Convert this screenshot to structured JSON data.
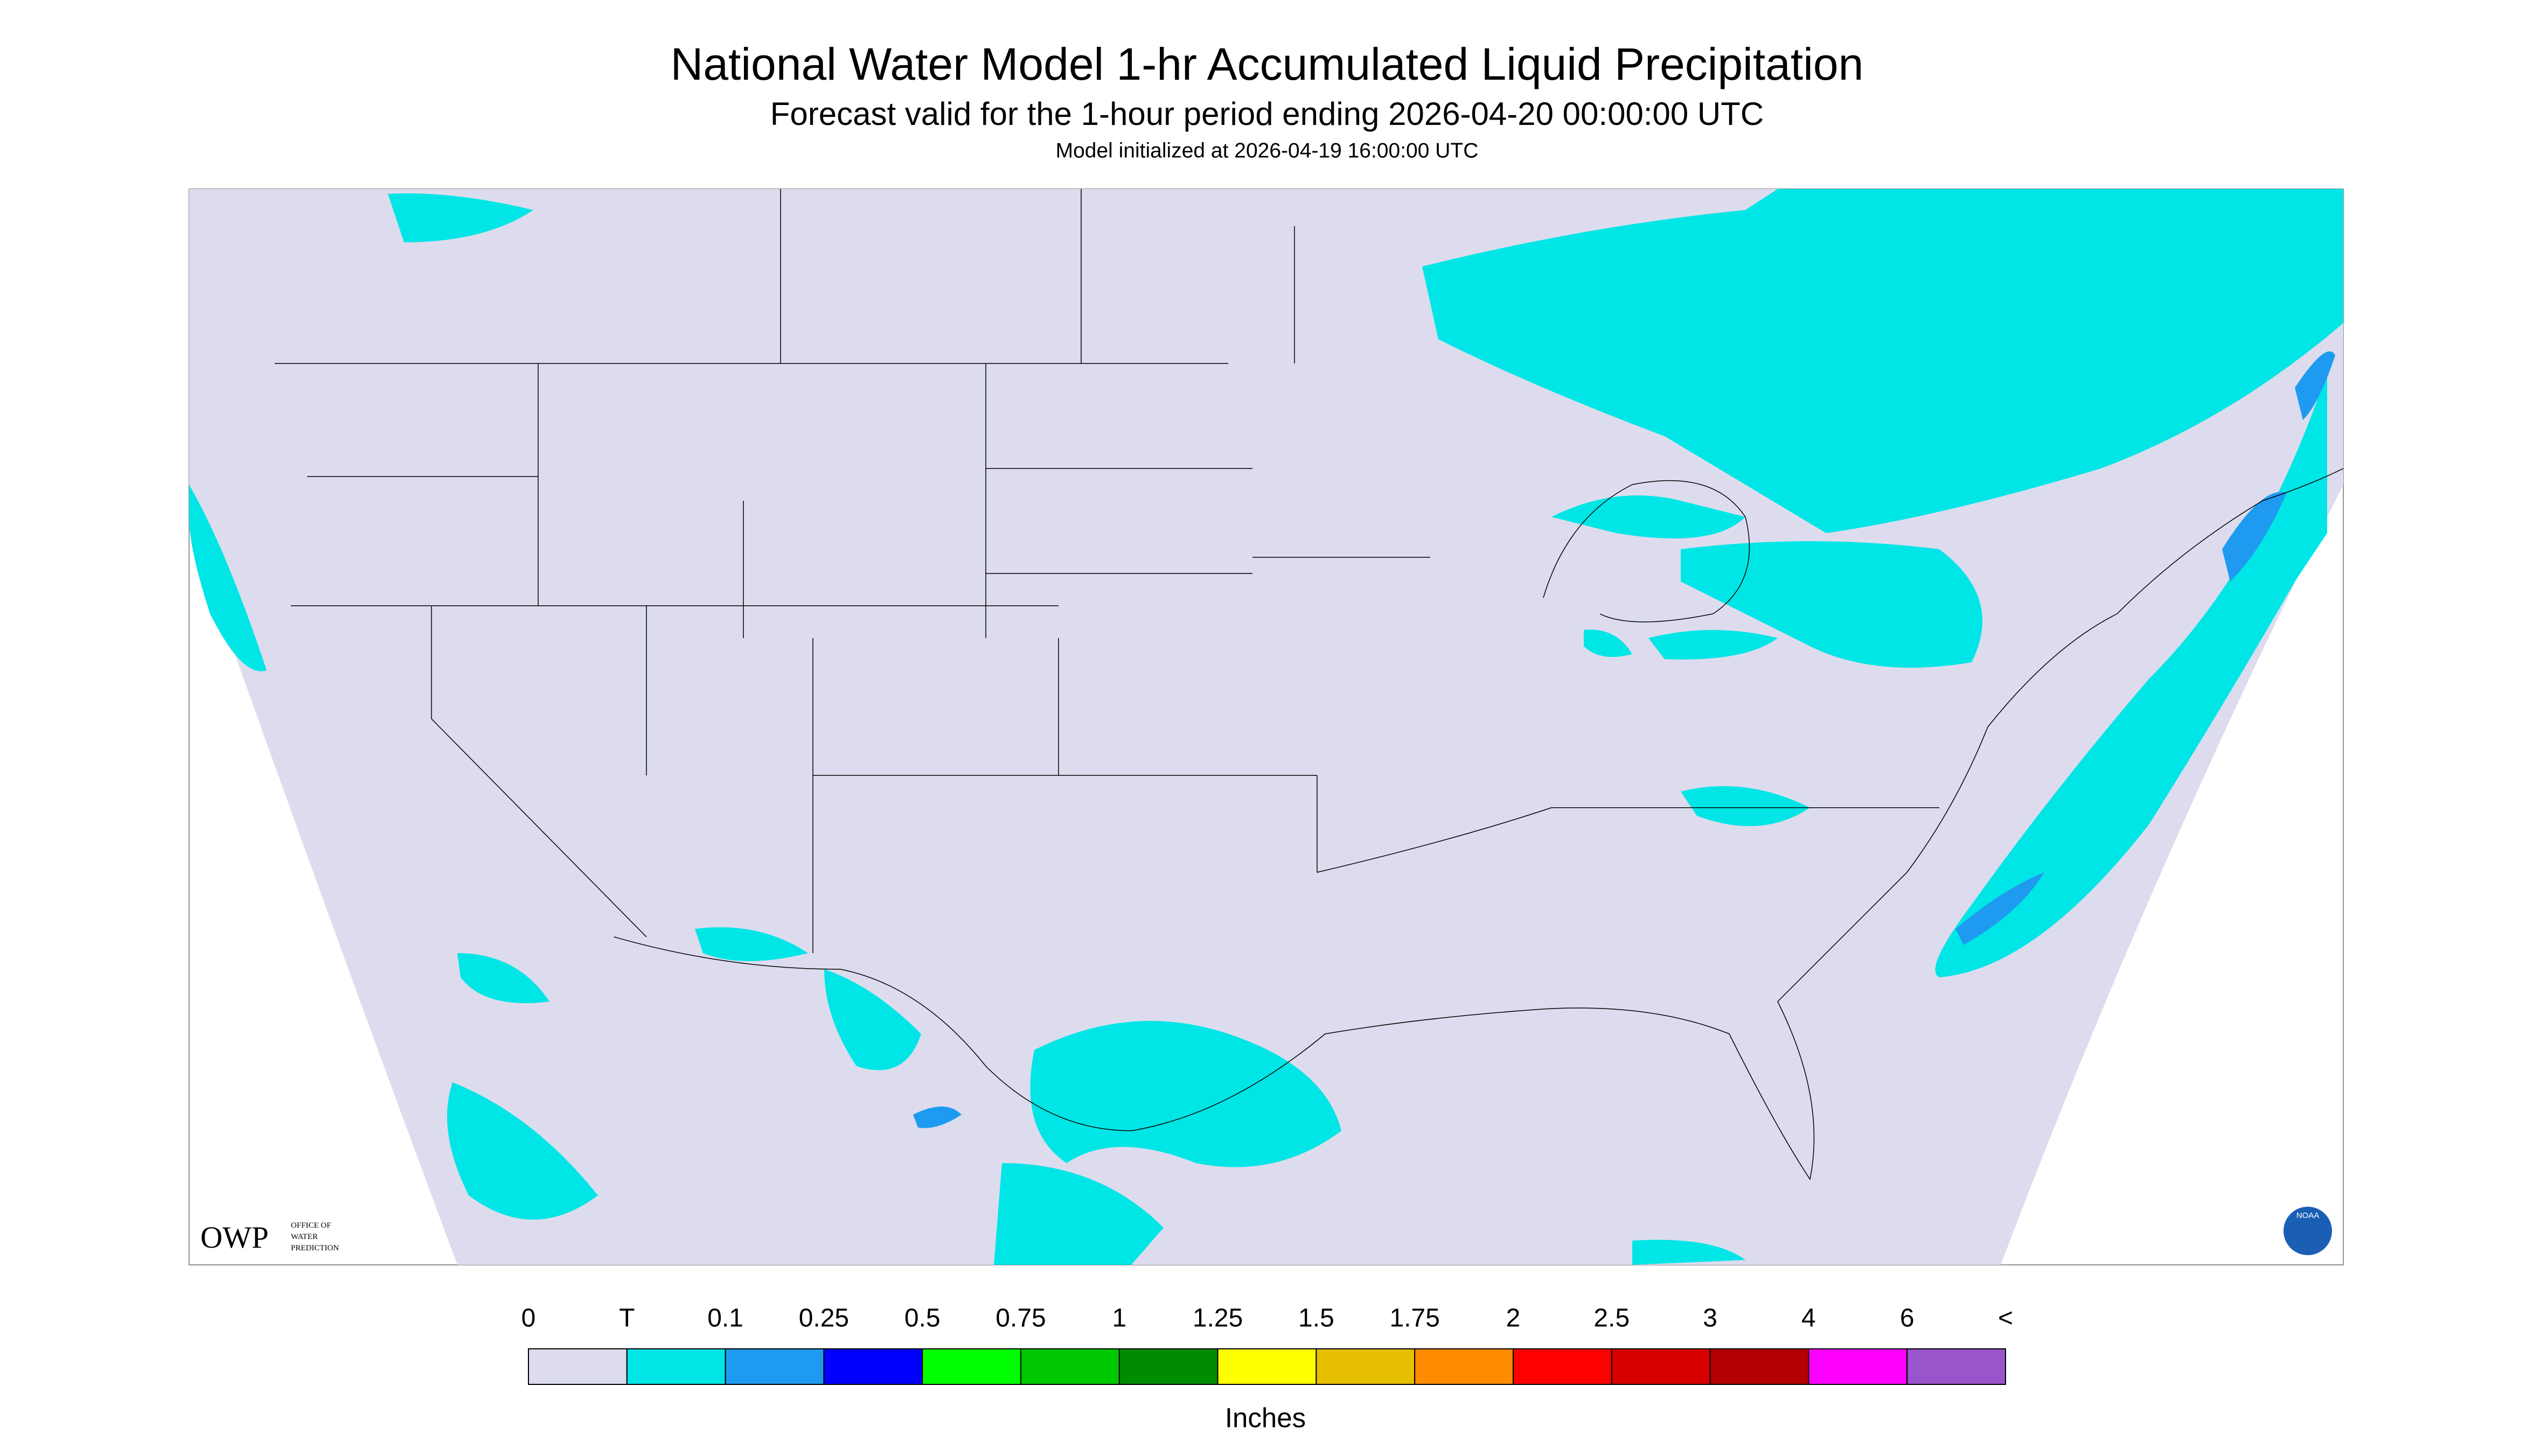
{
  "header": {
    "title": "National Water Model 1-hr Accumulated Liquid Precipitation",
    "subtitle": "Forecast valid for the 1-hour period ending 2026-04-20 00:00:00 UTC",
    "init": "Model initialized at 2026-04-19 16:00:00 UTC"
  },
  "logos": {
    "owp": "OWP",
    "owp_lines": [
      "OFFICE OF",
      "WATER",
      "PREDICTION"
    ],
    "noaa": "NOAA"
  },
  "legend": {
    "labels": [
      "0",
      "T",
      "0.1",
      "0.25",
      "0.5",
      "0.75",
      "1",
      "1.25",
      "1.5",
      "1.75",
      "2",
      "2.5",
      "3",
      "4",
      "6",
      "<"
    ],
    "colors": [
      "#dcdcee",
      "#00e5e5",
      "#1e9bf0",
      "#0000ff",
      "#00ff00",
      "#00c800",
      "#008c00",
      "#ffff00",
      "#e6c000",
      "#ff8c00",
      "#ff0000",
      "#d70000",
      "#b40000",
      "#ff00ff",
      "#9955cc"
    ],
    "units": "Inches"
  }
}
